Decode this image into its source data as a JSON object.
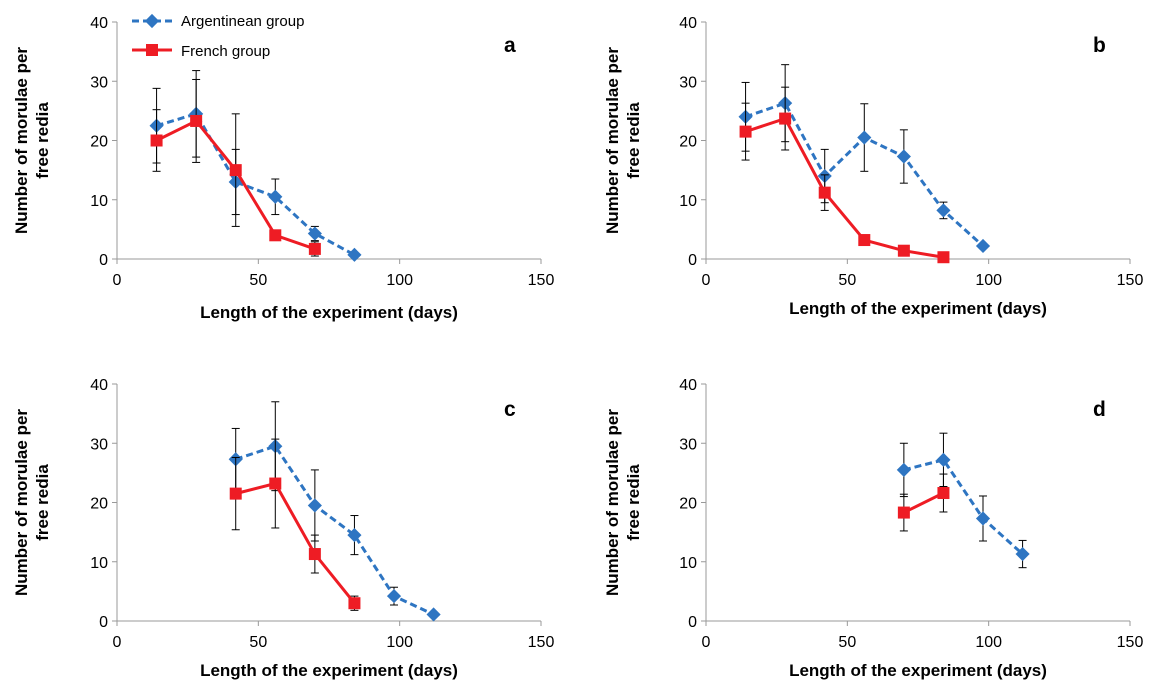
{
  "legend": {
    "argentinean": "Argentinean group",
    "french": "French group"
  },
  "colors": {
    "argentinean": "#2e75c2",
    "french": "#ee1c24"
  },
  "chart_data": [
    {
      "type": "line",
      "panel_label": "a",
      "xlabel": "Length of the experiment (days)",
      "ylabel": [
        "Number of  morulae per",
        "free redia"
      ],
      "xlim": [
        0,
        150
      ],
      "ylim": [
        0,
        40
      ],
      "xticks": [
        0,
        50,
        100,
        150
      ],
      "yticks": [
        0,
        10,
        20,
        30,
        40
      ],
      "grid": false,
      "legend_position": "top-left",
      "series": [
        {
          "name": "Argentinean group",
          "marker": "diamond",
          "line": "dashed",
          "x": [
            14,
            28,
            42,
            56,
            70,
            84
          ],
          "y": [
            22.5,
            24.5,
            13,
            10.5,
            4.3,
            0.7
          ],
          "err": [
            6.3,
            7.3,
            5.5,
            3.0,
            1.2,
            0.3
          ]
        },
        {
          "name": "French group",
          "marker": "square",
          "line": "solid",
          "x": [
            14,
            28,
            42,
            56,
            70
          ],
          "y": [
            20,
            23.3,
            15,
            4,
            1.7
          ],
          "err": [
            5.2,
            7,
            9.5,
            0.8,
            1.2
          ]
        }
      ]
    },
    {
      "type": "line",
      "panel_label": "b",
      "xlabel": "Length of the experiment (days)",
      "ylabel": [
        "Number of  morulae per",
        "free redia"
      ],
      "xlim": [
        0,
        150
      ],
      "ylim": [
        0,
        40
      ],
      "xticks": [
        0,
        50,
        100,
        150
      ],
      "yticks": [
        0,
        10,
        20,
        30,
        40
      ],
      "grid": false,
      "series": [
        {
          "name": "Argentinean group",
          "marker": "diamond",
          "line": "dashed",
          "x": [
            14,
            28,
            42,
            56,
            70,
            84,
            98
          ],
          "y": [
            24,
            26.3,
            14,
            20.5,
            17.3,
            8.2,
            2.2
          ],
          "err": [
            5.8,
            6.5,
            4.5,
            5.7,
            4.5,
            1.4,
            0.3
          ]
        },
        {
          "name": "French group",
          "marker": "square",
          "line": "solid",
          "x": [
            14,
            28,
            42,
            56,
            70,
            84
          ],
          "y": [
            21.5,
            23.7,
            11.2,
            3.2,
            1.4,
            0.3
          ],
          "err": [
            4.8,
            5.3,
            3,
            0.3,
            0.3,
            0.2
          ]
        }
      ]
    },
    {
      "type": "line",
      "panel_label": "c",
      "xlabel": "Length of the experiment (days)",
      "ylabel": [
        "Number of  morulae per",
        "free redia"
      ],
      "xlim": [
        0,
        150
      ],
      "ylim": [
        0,
        40
      ],
      "xticks": [
        0,
        50,
        100,
        150
      ],
      "yticks": [
        0,
        10,
        20,
        30,
        40
      ],
      "grid": false,
      "series": [
        {
          "name": "Argentinean group",
          "marker": "diamond",
          "line": "dashed",
          "x": [
            42,
            56,
            70,
            84,
            98,
            112
          ],
          "y": [
            27.3,
            29.5,
            19.5,
            14.5,
            4.2,
            1.1
          ],
          "err": [
            5.2,
            7.5,
            6,
            3.3,
            1.5,
            0.3
          ]
        },
        {
          "name": "French group",
          "marker": "square",
          "line": "solid",
          "x": [
            42,
            56,
            70,
            84
          ],
          "y": [
            21.5,
            23.2,
            11.3,
            3
          ],
          "err": [
            6.1,
            7.5,
            3.2,
            1.2
          ]
        }
      ]
    },
    {
      "type": "line",
      "panel_label": "d",
      "xlabel": "Length of the experiment (days)",
      "ylabel": [
        "Number of  morulae per",
        "free redia"
      ],
      "xlim": [
        0,
        150
      ],
      "ylim": [
        0,
        40
      ],
      "xticks": [
        0,
        50,
        100,
        150
      ],
      "yticks": [
        0,
        10,
        20,
        30,
        40
      ],
      "grid": false,
      "series": [
        {
          "name": "Argentinean group",
          "marker": "diamond",
          "line": "dashed",
          "x": [
            70,
            84,
            98,
            112
          ],
          "y": [
            25.5,
            27.2,
            17.3,
            11.3
          ],
          "err": [
            4.5,
            4.5,
            3.8,
            2.3
          ]
        },
        {
          "name": "French group",
          "marker": "square",
          "line": "solid",
          "x": [
            70,
            84
          ],
          "y": [
            18.3,
            21.6
          ],
          "err": [
            3.1,
            3.2
          ]
        }
      ]
    }
  ]
}
